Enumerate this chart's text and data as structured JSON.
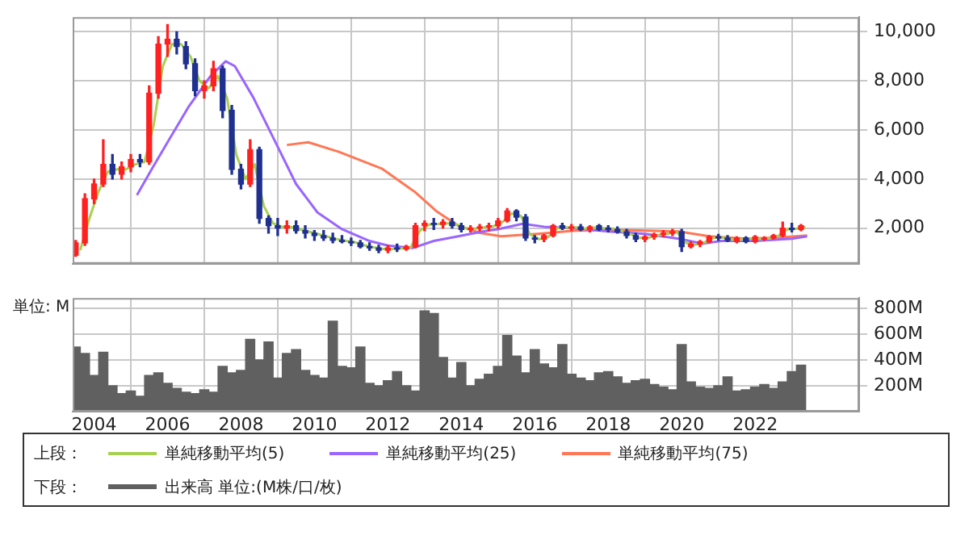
{
  "chart_data": [
    {
      "type": "candlestick",
      "x": [
        "2003-07",
        "2003-10",
        "2004-01",
        "2004-04",
        "2004-07",
        "2004-10",
        "2005-01",
        "2005-04",
        "2005-07",
        "2005-10",
        "2006-01",
        "2006-04",
        "2006-07",
        "2006-10",
        "2007-01",
        "2007-04",
        "2007-07",
        "2007-10",
        "2008-01",
        "2008-04",
        "2008-07",
        "2008-10",
        "2009-01",
        "2009-04",
        "2009-07",
        "2009-10",
        "2010-01",
        "2010-04",
        "2010-07",
        "2010-10",
        "2011-01",
        "2011-04",
        "2011-07",
        "2011-10",
        "2012-01",
        "2012-04",
        "2012-07",
        "2012-10",
        "2013-01",
        "2013-04",
        "2013-07",
        "2013-10",
        "2014-01",
        "2014-04",
        "2014-07",
        "2014-10",
        "2015-01",
        "2015-04",
        "2015-07",
        "2015-10",
        "2016-01",
        "2016-04",
        "2016-07",
        "2016-10",
        "2017-01",
        "2017-04",
        "2017-07",
        "2017-10",
        "2018-01",
        "2018-04",
        "2018-07",
        "2018-10",
        "2019-01",
        "2019-04",
        "2019-07",
        "2019-10",
        "2020-01",
        "2020-04",
        "2020-07",
        "2020-10",
        "2021-01",
        "2021-04",
        "2021-07",
        "2021-10",
        "2022-01",
        "2022-04",
        "2022-07",
        "2022-10",
        "2023-01",
        "2023-04"
      ],
      "ohlc": [
        [
          900,
          1500,
          850,
          1400
        ],
        [
          1400,
          3400,
          1300,
          3200
        ],
        [
          3200,
          4000,
          3000,
          3800
        ],
        [
          3800,
          5600,
          3700,
          4600
        ],
        [
          4600,
          5000,
          4000,
          4200
        ],
        [
          4200,
          4700,
          4000,
          4500
        ],
        [
          4500,
          5000,
          4300,
          4800
        ],
        [
          4800,
          5000,
          4500,
          4700
        ],
        [
          4700,
          7800,
          4600,
          7500
        ],
        [
          7500,
          9800,
          7300,
          9500
        ],
        [
          9500,
          10300,
          9000,
          9700
        ],
        [
          9700,
          10000,
          9100,
          9400
        ],
        [
          9400,
          9600,
          8500,
          8700
        ],
        [
          8700,
          8900,
          7400,
          7600
        ],
        [
          7600,
          8000,
          7300,
          7800
        ],
        [
          7800,
          8800,
          7600,
          8500
        ],
        [
          8500,
          8600,
          6500,
          6800
        ],
        [
          6800,
          7000,
          4200,
          4400
        ],
        [
          4400,
          4600,
          3600,
          3800
        ],
        [
          3800,
          5600,
          3700,
          5200
        ],
        [
          5200,
          5300,
          2200,
          2400
        ],
        [
          2400,
          2500,
          1800,
          2100
        ],
        [
          2100,
          2400,
          1700,
          2000
        ],
        [
          2000,
          2300,
          1800,
          2100
        ],
        [
          2100,
          2300,
          1800,
          1900
        ],
        [
          1900,
          2100,
          1600,
          1800
        ],
        [
          1800,
          1900,
          1500,
          1700
        ],
        [
          1700,
          1900,
          1500,
          1600
        ],
        [
          1600,
          1800,
          1400,
          1500
        ],
        [
          1500,
          1700,
          1400,
          1450
        ],
        [
          1450,
          1600,
          1300,
          1400
        ],
        [
          1400,
          1500,
          1200,
          1250
        ],
        [
          1250,
          1400,
          1100,
          1200
        ],
        [
          1200,
          1300,
          1000,
          1100
        ],
        [
          1100,
          1300,
          1000,
          1200
        ],
        [
          1200,
          1350,
          1050,
          1150
        ],
        [
          1150,
          1300,
          1100,
          1250
        ],
        [
          1250,
          2200,
          1200,
          2100
        ],
        [
          2100,
          2300,
          1900,
          2200
        ],
        [
          2200,
          2400,
          1950,
          2150
        ],
        [
          2150,
          2350,
          2000,
          2250
        ],
        [
          2250,
          2400,
          2000,
          2100
        ],
        [
          2100,
          2200,
          1850,
          1950
        ],
        [
          1950,
          2100,
          1850,
          2000
        ],
        [
          2000,
          2150,
          1900,
          2050
        ],
        [
          2050,
          2200,
          1900,
          2100
        ],
        [
          2100,
          2400,
          2000,
          2300
        ],
        [
          2300,
          2800,
          2250,
          2700
        ],
        [
          2700,
          2750,
          2300,
          2450
        ],
        [
          2450,
          2550,
          1500,
          1600
        ],
        [
          1600,
          1700,
          1400,
          1550
        ],
        [
          1550,
          1750,
          1450,
          1700
        ],
        [
          1700,
          2150,
          1650,
          2100
        ],
        [
          2100,
          2200,
          1950,
          2000
        ],
        [
          2000,
          2150,
          1900,
          2050
        ],
        [
          2050,
          2150,
          1900,
          1950
        ],
        [
          1950,
          2100,
          1850,
          2050
        ],
        [
          2100,
          2150,
          1900,
          1950
        ],
        [
          2000,
          2100,
          1850,
          1950
        ],
        [
          1950,
          2050,
          1800,
          1850
        ],
        [
          1850,
          1950,
          1600,
          1700
        ],
        [
          1700,
          1800,
          1450,
          1550
        ],
        [
          1550,
          1700,
          1450,
          1650
        ],
        [
          1650,
          1800,
          1550,
          1750
        ],
        [
          1750,
          1900,
          1650,
          1800
        ],
        [
          1800,
          1950,
          1700,
          1850
        ],
        [
          1850,
          1950,
          1050,
          1250
        ],
        [
          1250,
          1450,
          1200,
          1350
        ],
        [
          1350,
          1500,
          1250,
          1450
        ],
        [
          1450,
          1700,
          1400,
          1650
        ],
        [
          1650,
          1750,
          1500,
          1600
        ],
        [
          1600,
          1700,
          1450,
          1500
        ],
        [
          1450,
          1650,
          1400,
          1600
        ],
        [
          1600,
          1650,
          1400,
          1450
        ],
        [
          1450,
          1700,
          1400,
          1650
        ],
        [
          1550,
          1650,
          1500,
          1600
        ],
        [
          1600,
          1750,
          1550,
          1700
        ],
        [
          1700,
          2250,
          1650,
          2000
        ],
        [
          2000,
          2200,
          1850,
          1950
        ],
        [
          1950,
          2150,
          1900,
          2100
        ]
      ],
      "colors": [
        "#ff2020",
        "#ff2020",
        "#ff2020",
        "#ff2020",
        "#203090",
        "#ff2020",
        "#ff2020",
        "#203090",
        "#ff2020",
        "#ff2020",
        "#ff2020",
        "#203090",
        "#203090",
        "#203090",
        "#ff2020",
        "#ff2020",
        "#203090",
        "#203090",
        "#203090",
        "#ff2020",
        "#203090",
        "#203090",
        "#203090",
        "#ff2020",
        "#203090",
        "#203090",
        "#203090",
        "#203090",
        "#203090",
        "#203090",
        "#203090",
        "#203090",
        "#203090",
        "#203090",
        "#ff2020",
        "#203090",
        "#ff2020",
        "#ff2020",
        "#ff2020",
        "#203090",
        "#ff2020",
        "#203090",
        "#203090",
        "#ff2020",
        "#ff2020",
        "#ff2020",
        "#ff2020",
        "#ff2020",
        "#203090",
        "#203090",
        "#203090",
        "#ff2020",
        "#ff2020",
        "#203090",
        "#ff2020",
        "#203090",
        "#ff2020",
        "#203090",
        "#203090",
        "#203090",
        "#203090",
        "#203090",
        "#ff2020",
        "#ff2020",
        "#ff2020",
        "#ff2020",
        "#203090",
        "#ff2020",
        "#ff2020",
        "#ff2020",
        "#203090",
        "#203090",
        "#ff2020",
        "#203090",
        "#ff2020",
        "#ff2020",
        "#ff2020",
        "#ff2020",
        "#203090",
        "#ff2020"
      ],
      "series": [
        {
          "type": "line",
          "name": "単純移動平均(5)",
          "color": "#a8d050",
          "x": [
            "2003-08-15",
            "2003-11-15",
            "2004-02-15",
            "2004-05-15",
            "2004-08-15",
            "2004-11-15",
            "2005-02-15",
            "2005-05-15",
            "2005-08-15",
            "2005-11-15",
            "2006-02-15",
            "2006-05-15",
            "2006-08-15",
            "2006-11-15",
            "2007-02-15",
            "2007-05-15",
            "2007-08-15",
            "2007-11-15",
            "2008-02-15",
            "2008-05-15",
            "2008-08-15",
            "2008-11-15",
            "2009-02-15",
            "2009-05-15",
            "2009-08-15",
            "2009-11-15",
            "2010-02-15",
            "2010-05-15",
            "2010-08-15",
            "2010-11-15",
            "2011-02-15",
            "2011-05-15",
            "2011-08-15",
            "2011-11-15",
            "2012-02-15",
            "2012-05-15",
            "2012-08-15",
            "2012-11-15",
            "2013-02-15",
            "2013-05-15",
            "2013-08-15",
            "2013-11-15",
            "2014-02-15",
            "2014-05-15",
            "2014-08-15",
            "2014-11-15",
            "2015-02-15",
            "2015-05-15",
            "2015-08-15",
            "2015-11-15",
            "2016-02-15",
            "2016-05-15",
            "2016-08-15",
            "2016-11-15",
            "2017-02-15",
            "2017-05-15",
            "2017-08-15",
            "2017-11-15",
            "2018-02-15",
            "2018-05-15",
            "2018-08-15",
            "2018-11-15",
            "2019-02-15",
            "2019-05-15",
            "2019-08-15",
            "2019-11-15",
            "2020-02-15",
            "2020-05-15",
            "2020-08-15",
            "2020-11-15",
            "2021-02-15",
            "2021-05-15",
            "2021-08-15",
            "2021-11-15",
            "2022-02-15",
            "2022-05-15",
            "2022-08-15",
            "2022-11-15",
            "2023-02-15",
            "2023-05-15"
          ],
          "values": [
            1100,
            2400,
            3500,
            4300,
            4400,
            4400,
            4600,
            4700,
            6200,
            8600,
            9500,
            9500,
            9000,
            8000,
            7700,
            8200,
            7300,
            5000,
            4000,
            4600,
            2900,
            2200,
            2050,
            2050,
            1950,
            1850,
            1750,
            1650,
            1550,
            1480,
            1420,
            1300,
            1220,
            1150,
            1150,
            1180,
            1220,
            1900,
            2150,
            2170,
            2200,
            2150,
            2000,
            1980,
            2030,
            2080,
            2250,
            2600,
            2500,
            1750,
            1550,
            1650,
            2000,
            2030,
            2030,
            1980,
            2020,
            2000,
            1980,
            1880,
            1750,
            1600,
            1620,
            1720,
            1780,
            1830,
            1400,
            1330,
            1420,
            1600,
            1620,
            1530,
            1540,
            1580,
            1560,
            1580,
            1680,
            1950,
            1980,
            2050
          ]
        },
        {
          "type": "line",
          "name": "単純移動平均(25)",
          "color": "#9966ff",
          "x": [
            "2005-03",
            "2005-08",
            "2006-01",
            "2006-08",
            "2007-03",
            "2007-08",
            "2007-11",
            "2008-05",
            "2008-12",
            "2009-07",
            "2010-02",
            "2010-10",
            "2011-07",
            "2012-01",
            "2012-09",
            "2013-04",
            "2013-12",
            "2014-08",
            "2015-01",
            "2015-09",
            "2016-04",
            "2017-02",
            "2018-01",
            "2019-01",
            "2019-12",
            "2020-08",
            "2021-02",
            "2022-01",
            "2023-01",
            "2023-06"
          ],
          "values": [
            3350,
            4440,
            5500,
            6970,
            8190,
            8800,
            8600,
            7330,
            5570,
            3800,
            2640,
            1960,
            1480,
            1290,
            1190,
            1480,
            1670,
            1870,
            1960,
            2180,
            2060,
            2000,
            1870,
            1770,
            1570,
            1370,
            1480,
            1480,
            1570,
            1670
          ]
        },
        {
          "type": "line",
          "name": "単純移動平均(75)",
          "color": "#ff7755",
          "x": [
            "2009-04",
            "2009-11",
            "2010-09",
            "2011-11",
            "2012-10",
            "2013-05",
            "2013-12",
            "2014-07",
            "2015-02",
            "2016-02",
            "2017-02",
            "2018-08",
            "2019-12",
            "2020-10",
            "2021-10",
            "2022-09",
            "2023-06"
          ],
          "values": [
            5390,
            5500,
            5110,
            4430,
            3460,
            2680,
            2100,
            1810,
            1670,
            1770,
            1900,
            1920,
            1870,
            1670,
            1570,
            1620,
            1700
          ]
        }
      ],
      "xlim": [
        "2003-06",
        "2024-11"
      ],
      "xticks": [
        "2004",
        "2006",
        "2008",
        "2010",
        "2012",
        "2014",
        "2016",
        "2018",
        "2020",
        "2022"
      ],
      "ylim": [
        550,
        10600
      ],
      "yticks": [
        {
          "value": 2000,
          "label": "2,000"
        },
        {
          "value": 4000,
          "label": "4,000"
        },
        {
          "value": 6000,
          "label": "6,000"
        },
        {
          "value": 8000,
          "label": "8,000"
        },
        {
          "value": 10000,
          "label": "10,000"
        }
      ],
      "grid": true,
      "tick_labels": "y",
      "legend": "bottom",
      "legend_title": "上段："
    },
    {
      "type": "bar",
      "ylabel": "単位: M",
      "x": [
        "2003-07",
        "2003-10",
        "2004-01",
        "2004-04",
        "2004-07",
        "2004-10",
        "2005-01",
        "2005-04",
        "2005-07",
        "2005-10",
        "2006-01",
        "2006-04",
        "2006-07",
        "2006-10",
        "2007-01",
        "2007-04",
        "2007-07",
        "2007-10",
        "2008-01",
        "2008-04",
        "2008-07",
        "2008-10",
        "2009-01",
        "2009-04",
        "2009-07",
        "2009-10",
        "2010-01",
        "2010-04",
        "2010-07",
        "2010-10",
        "2011-01",
        "2011-04",
        "2011-07",
        "2011-10",
        "2012-01",
        "2012-04",
        "2012-07",
        "2012-10",
        "2013-01",
        "2013-04",
        "2013-07",
        "2013-10",
        "2014-01",
        "2014-04",
        "2014-07",
        "2014-10",
        "2015-01",
        "2015-04",
        "2015-07",
        "2015-10",
        "2016-01",
        "2016-04",
        "2016-07",
        "2016-10",
        "2017-01",
        "2017-04",
        "2017-07",
        "2017-10",
        "2018-01",
        "2018-04",
        "2018-07",
        "2018-10",
        "2019-01",
        "2019-04",
        "2019-07",
        "2019-10",
        "2020-01",
        "2020-04",
        "2020-07",
        "2020-10",
        "2021-01",
        "2021-04",
        "2021-07",
        "2021-10",
        "2022-01",
        "2022-04",
        "2022-07",
        "2022-10",
        "2023-01",
        "2023-04"
      ],
      "series": [
        {
          "name": "出来高 単位:(M株/口/枚)",
          "color": "#606060",
          "values": [
            500,
            450,
            280,
            460,
            200,
            140,
            160,
            120,
            280,
            300,
            220,
            180,
            150,
            140,
            170,
            150,
            350,
            300,
            320,
            560,
            400,
            540,
            260,
            450,
            480,
            320,
            280,
            260,
            700,
            350,
            340,
            500,
            220,
            200,
            240,
            310,
            200,
            160,
            780,
            760,
            420,
            260,
            380,
            200,
            250,
            290,
            350,
            590,
            430,
            300,
            480,
            370,
            340,
            520,
            290,
            260,
            240,
            300,
            310,
            270,
            220,
            240,
            250,
            210,
            190,
            170,
            520,
            230,
            190,
            180,
            200,
            270,
            160,
            170,
            190,
            210,
            180,
            230,
            310,
            360
          ]
        }
      ],
      "xlim": [
        "2003-06",
        "2024-11"
      ],
      "xticks": [
        "2004",
        "2006",
        "2008",
        "2010",
        "2012",
        "2014",
        "2016",
        "2018",
        "2020",
        "2022"
      ],
      "ylim": [
        0,
        880
      ],
      "yticks": [
        {
          "value": 200,
          "label": "200M"
        },
        {
          "value": 400,
          "label": "400M"
        },
        {
          "value": 600,
          "label": "600M"
        },
        {
          "value": 800,
          "label": "800M"
        }
      ],
      "grid": true,
      "legend": "bottom",
      "legend_title": "下段："
    }
  ]
}
